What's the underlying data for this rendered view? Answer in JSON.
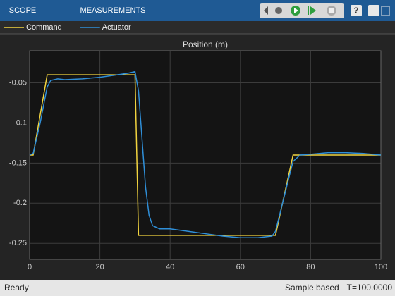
{
  "toolbar": {
    "tabs": [
      "SCOPE",
      "MEASUREMENTS"
    ]
  },
  "status_bar": {
    "state": "Ready",
    "mode": "Sample based",
    "time": "T=100.0000"
  },
  "chart_data": {
    "type": "line",
    "title": "Position (m)",
    "series": [
      {
        "name": "Command",
        "color": "#f2d43f",
        "x": [
          0,
          1,
          5,
          30,
          31,
          70,
          75,
          100
        ],
        "values": [
          -0.14,
          -0.14,
          -0.04,
          -0.04,
          -0.24,
          -0.24,
          -0.14,
          -0.14
        ]
      },
      {
        "name": "Actuator",
        "color": "#2f8fd8",
        "x": [
          0,
          1,
          3,
          5,
          6,
          8,
          10,
          15,
          20,
          25,
          28,
          30,
          31,
          32,
          33,
          34,
          35,
          37,
          40,
          45,
          50,
          55,
          60,
          65,
          69,
          70,
          72,
          74,
          75,
          77,
          80,
          85,
          90,
          95,
          100
        ],
        "values": [
          -0.14,
          -0.138,
          -0.1,
          -0.055,
          -0.047,
          -0.045,
          -0.046,
          -0.045,
          -0.043,
          -0.04,
          -0.038,
          -0.036,
          -0.06,
          -0.12,
          -0.18,
          -0.215,
          -0.228,
          -0.232,
          -0.232,
          -0.235,
          -0.238,
          -0.241,
          -0.243,
          -0.243,
          -0.241,
          -0.235,
          -0.2,
          -0.165,
          -0.148,
          -0.14,
          -0.139,
          -0.137,
          -0.137,
          -0.138,
          -0.14
        ]
      }
    ],
    "xlim": [
      0,
      100
    ],
    "xticks": [
      0,
      20,
      40,
      60,
      80,
      100
    ],
    "ylim": [
      -0.27,
      -0.01
    ],
    "yticks": [
      -0.05,
      -0.1,
      -0.15,
      -0.2,
      -0.25
    ],
    "grid": true,
    "legend": "top"
  }
}
